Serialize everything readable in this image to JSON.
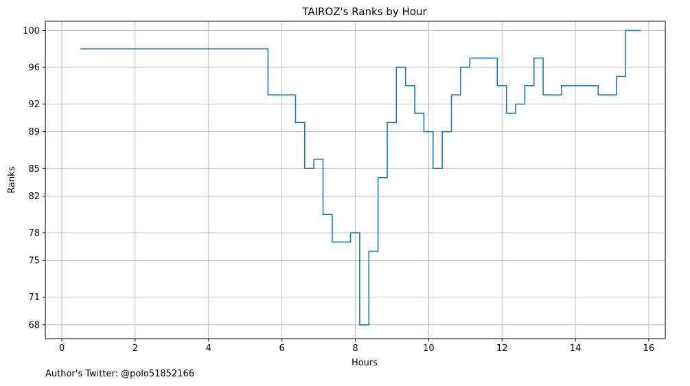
{
  "chart_data": {
    "type": "line",
    "drawstyle": "steps",
    "title": "TAIROZ's Ranks by Hour",
    "xlabel": "Hours",
    "ylabel": "Ranks",
    "xlim": [
      -0.45,
      16.45
    ],
    "ylim": [
      101,
      66.5
    ],
    "y_inverted": true,
    "grid": true,
    "line_color": "#1f77b4",
    "x_ticks": [
      0,
      2,
      4,
      6,
      8,
      10,
      12,
      14,
      16
    ],
    "y_ticks": [
      68,
      71,
      75,
      78,
      82,
      85,
      89,
      92,
      96,
      100
    ],
    "x": [
      0.5,
      5.62,
      6.37,
      6.62,
      6.87,
      7.12,
      7.37,
      7.87,
      8.12,
      8.37,
      8.62,
      8.87,
      9.12,
      9.37,
      9.62,
      9.87,
      10.12,
      10.37,
      10.62,
      10.87,
      11.12,
      11.87,
      12.12,
      12.37,
      12.62,
      12.87,
      13.12,
      13.62,
      14.62,
      15.12,
      15.37,
      15.78
    ],
    "values": [
      98,
      93,
      90,
      85,
      86,
      80,
      77,
      78,
      68,
      76,
      84,
      90,
      96,
      94,
      91,
      89,
      85,
      89,
      93,
      96,
      97,
      94,
      91,
      92,
      94,
      97,
      93,
      94,
      93,
      95,
      100,
      100
    ]
  },
  "footer": {
    "text": "Author's Twitter: @polo51852166"
  }
}
